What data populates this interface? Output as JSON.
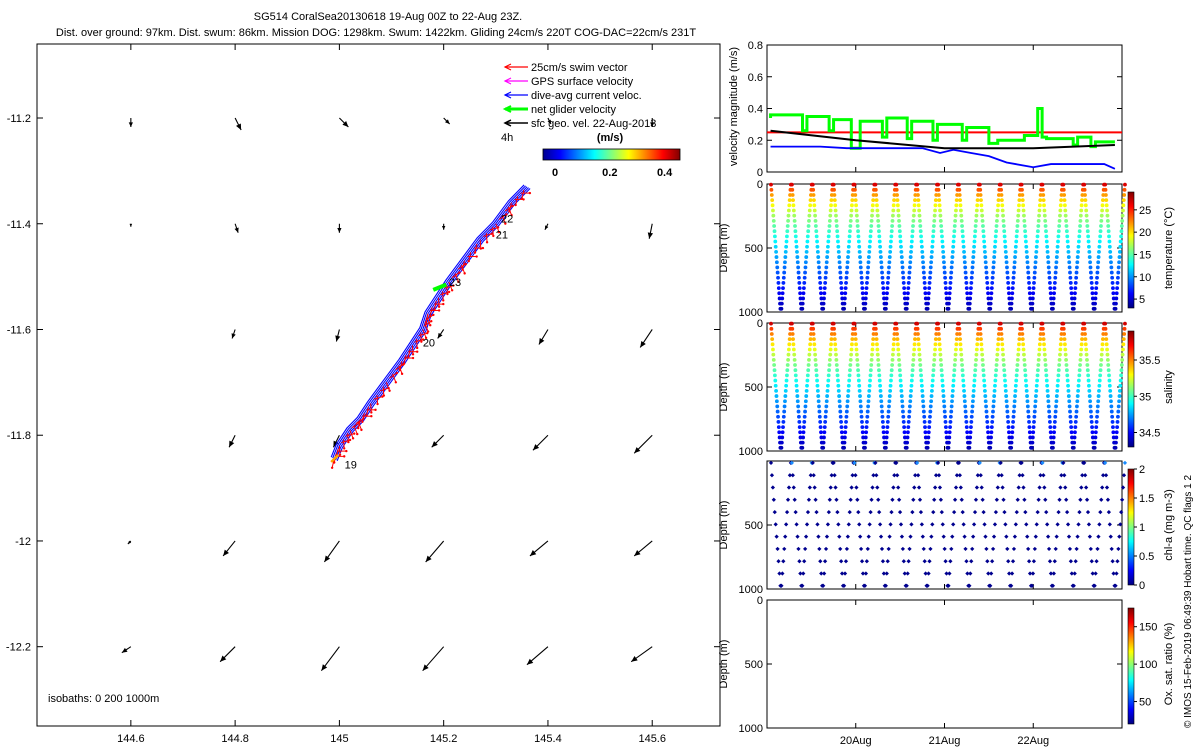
{
  "header": {
    "line1": "SG514 CoralSea20130618 19-Aug 00Z to 22-Aug 23Z.",
    "line2": "Dist. over ground: 97km. Dist. swum: 86km. Mission DOG: 1298km. Swum: 1422km. Gliding 24cm/s 220T COG-DAC=22cm/s 231T"
  },
  "footer_note": "© IMOS 15-Feb-2019 06:49:39 Hobart time. QC flags 1  2",
  "chart_data": [
    {
      "type": "map",
      "xlim": [
        144.42,
        145.73
      ],
      "ylim": [
        -12.35,
        -11.06
      ],
      "xticks": [
        144.6,
        144.8,
        145,
        145.2,
        145.4,
        145.6
      ],
      "xtick_labels": [
        "144.6",
        "144.8",
        "145",
        "145.2",
        "145.4",
        "145.6"
      ],
      "yticks": [
        -11.2,
        -11.4,
        -11.6,
        -11.8,
        -12,
        -12.2
      ],
      "ytick_labels": [
        "-11.2",
        "-11.4",
        "-11.6",
        "-11.8",
        "-12",
        "-12.2"
      ],
      "legend": [
        {
          "label": "25cm/s swim vector",
          "color": "#ff0000"
        },
        {
          "label": "GPS surface velocity",
          "color": "#ff00ff"
        },
        {
          "label": "dive-avg current veloc.",
          "color": "#0000ff"
        },
        {
          "label": "net glider velocity",
          "color": "#00ff00"
        },
        {
          "label": "sfc geo. vel. 22-Aug-2013",
          "color": "#000000"
        }
      ],
      "scale_label": "4h",
      "colorbar": {
        "title": "(m/s)",
        "range": [
          0,
          0.5
        ],
        "ticks": [
          0,
          0.2,
          0.4
        ],
        "tick_labels": [
          "0",
          "0.2",
          "0.4"
        ]
      },
      "isobath_label": "isobaths: 0   200  1000m",
      "track": [
        [
          144.99,
          -11.845
        ],
        [
          145.0,
          -11.82
        ],
        [
          145.02,
          -11.79
        ],
        [
          145.04,
          -11.77
        ],
        [
          145.06,
          -11.74
        ],
        [
          145.09,
          -11.7
        ],
        [
          145.12,
          -11.66
        ],
        [
          145.14,
          -11.63
        ],
        [
          145.16,
          -11.6
        ],
        [
          145.17,
          -11.57
        ],
        [
          145.19,
          -11.54
        ],
        [
          145.21,
          -11.51
        ],
        [
          145.24,
          -11.47
        ],
        [
          145.27,
          -11.43
        ],
        [
          145.3,
          -11.4
        ],
        [
          145.33,
          -11.36
        ],
        [
          145.36,
          -11.33
        ]
      ],
      "day_labels": [
        {
          "text": "19",
          "lon": 145.01,
          "lat": -11.855
        },
        {
          "text": "20",
          "lon": 145.16,
          "lat": -11.625
        },
        {
          "text": "21",
          "lon": 145.3,
          "lat": -11.42
        },
        {
          "text": "22",
          "lon": 145.31,
          "lat": -11.39
        },
        {
          "text": "23",
          "lon": 145.21,
          "lat": -11.51
        }
      ],
      "geo_vectors": {
        "lons": [
          144.6,
          144.8,
          145.0,
          145.2,
          145.4,
          145.6
        ],
        "lats": [
          -11.2,
          -11.4,
          -11.6,
          -11.8,
          -12.0,
          -12.2
        ],
        "u": [
          [
            0.0,
            0.02,
            0.03,
            0.02,
            0.01,
            0.0
          ],
          [
            0.0,
            0.01,
            0.0,
            0.0,
            -0.01,
            -0.01
          ],
          [
            0.0,
            -0.01,
            -0.01,
            -0.02,
            -0.03,
            -0.04
          ],
          [
            0.0,
            -0.02,
            -0.02,
            -0.04,
            -0.05,
            -0.06
          ],
          [
            -0.01,
            -0.04,
            -0.05,
            -0.06,
            -0.06,
            -0.06
          ],
          [
            -0.03,
            -0.05,
            -0.06,
            -0.07,
            -0.07,
            -0.07
          ]
        ],
        "v": [
          [
            -0.03,
            -0.04,
            -0.03,
            -0.02,
            -0.02,
            -0.03
          ],
          [
            -0.01,
            -0.03,
            -0.03,
            -0.02,
            -0.02,
            -0.05
          ],
          [
            0.0,
            -0.03,
            -0.04,
            -0.03,
            -0.05,
            -0.06
          ],
          [
            0.0,
            -0.04,
            -0.04,
            -0.04,
            -0.05,
            -0.06
          ],
          [
            -0.01,
            -0.05,
            -0.07,
            -0.07,
            -0.05,
            -0.05
          ],
          [
            -0.02,
            -0.05,
            -0.08,
            -0.08,
            -0.06,
            -0.05
          ]
        ]
      }
    },
    {
      "type": "line",
      "ylabel": "velocity magnitude (m/s)",
      "ylim": [
        0,
        0.8
      ],
      "yticks": [
        0,
        0.2,
        0.4,
        0.6,
        0.8
      ],
      "ytick_labels": [
        "0",
        "0.2",
        "0.4",
        "0.6",
        "0.8"
      ],
      "xlim": [
        0,
        4
      ],
      "series": [
        {
          "name": "swim",
          "color": "#ff0000",
          "x": [
            0,
            4
          ],
          "values": [
            0.25,
            0.25
          ]
        },
        {
          "name": "net glider velocity",
          "color": "#00ff00",
          "x": [
            0.04,
            0.04,
            0.4,
            0.4,
            0.45,
            0.45,
            0.7,
            0.7,
            0.75,
            0.75,
            0.95,
            0.95,
            1.05,
            1.05,
            1.3,
            1.3,
            1.35,
            1.35,
            1.58,
            1.58,
            1.63,
            1.63,
            1.87,
            1.87,
            1.92,
            1.92,
            2.2,
            2.2,
            2.25,
            2.25,
            2.5,
            2.5,
            2.6,
            2.6,
            2.9,
            2.9,
            3.05,
            3.05,
            3.1,
            3.1,
            3.15,
            3.15,
            3.45,
            3.45,
            3.5,
            3.5,
            3.65,
            3.65,
            3.7,
            3.7,
            3.92
          ],
          "values": [
            0.34,
            0.36,
            0.36,
            0.26,
            0.26,
            0.35,
            0.35,
            0.26,
            0.26,
            0.33,
            0.33,
            0.15,
            0.15,
            0.32,
            0.32,
            0.22,
            0.22,
            0.34,
            0.34,
            0.21,
            0.21,
            0.32,
            0.32,
            0.2,
            0.2,
            0.3,
            0.3,
            0.2,
            0.2,
            0.28,
            0.28,
            0.18,
            0.18,
            0.2,
            0.2,
            0.23,
            0.23,
            0.4,
            0.4,
            0.22,
            0.22,
            0.21,
            0.21,
            0.17,
            0.17,
            0.22,
            0.22,
            0.16,
            0.16,
            0.19,
            0.19
          ]
        },
        {
          "name": "dive-avg current",
          "color": "#0000ff",
          "x": [
            0.04,
            0.6,
            0.9,
            1.15,
            1.55,
            1.75,
            1.95,
            2.1,
            2.3,
            2.5,
            2.7,
            2.8,
            3.0,
            3.2,
            3.4,
            3.6,
            3.8,
            3.92
          ],
          "values": [
            0.16,
            0.16,
            0.15,
            0.15,
            0.15,
            0.15,
            0.12,
            0.14,
            0.12,
            0.1,
            0.06,
            0.05,
            0.03,
            0.05,
            0.05,
            0.05,
            0.05,
            0.02
          ]
        },
        {
          "name": "sfc geo. vel.",
          "color": "#000000",
          "x": [
            0.04,
            1.0,
            2.0,
            3.0,
            3.92
          ],
          "values": [
            0.26,
            0.2,
            0.15,
            0.15,
            0.17
          ]
        }
      ]
    },
    {
      "type": "scatter",
      "ylabel": "Depth (m)",
      "cblabel": "temperature (°C)",
      "ylim": [
        1000,
        0
      ],
      "yticks": [
        0,
        500,
        1000
      ],
      "ytick_labels": [
        "0",
        "500",
        "1000"
      ],
      "crange": [
        3,
        29
      ],
      "cticks": [
        5,
        10,
        15,
        20,
        25
      ],
      "ctick_labels": [
        "5",
        "10",
        "15",
        "20",
        "25"
      ],
      "profiles": [
        {
          "x": 0.05,
          "top": 0.6,
          "bottom": 0.55
        }
      ],
      "dives": 17,
      "xlim": [
        0,
        4
      ],
      "depth_range": [
        0,
        1000
      ],
      "profile": "temperature"
    },
    {
      "type": "scatter",
      "ylabel": "Depth (m)",
      "cblabel": "salinity",
      "ylim": [
        1000,
        0
      ],
      "yticks": [
        0,
        500,
        1000
      ],
      "ytick_labels": [
        "0",
        "500",
        "1000"
      ],
      "crange": [
        34.3,
        35.9
      ],
      "cticks": [
        34.5,
        35,
        35.5
      ],
      "ctick_labels": [
        "34.5",
        "35",
        "35.5"
      ],
      "dives": 17,
      "xlim": [
        0,
        4
      ],
      "depth_range": [
        0,
        1000
      ],
      "profile": "salinity"
    },
    {
      "type": "scatter",
      "ylabel": "Depth (m)",
      "cblabel": "chl-a (mg m-3)",
      "ylim": [
        1000,
        0
      ],
      "yticks": [
        500,
        1000
      ],
      "ytick_labels": [
        "500",
        "1000"
      ],
      "crange": [
        0,
        2
      ],
      "cticks": [
        0,
        0.5,
        1,
        1.5,
        2
      ],
      "ctick_labels": [
        "0",
        "0.5",
        "1",
        "1.5",
        "2"
      ],
      "dives": 17,
      "xlim": [
        0,
        4
      ],
      "profile": "chl"
    },
    {
      "type": "scatter",
      "ylabel": "Depth (m)",
      "cblabel": "Ox. sat. ratio (%)",
      "ylim": [
        1000,
        0
      ],
      "yticks": [
        0,
        500,
        1000
      ],
      "ytick_labels": [
        "0",
        "500",
        "1000"
      ],
      "crange": [
        20,
        175
      ],
      "cticks": [
        50,
        100,
        150
      ],
      "ctick_labels": [
        "50",
        "100",
        "150"
      ],
      "xticks": [
        1,
        2,
        3
      ],
      "xtick_labels": [
        "20Aug",
        "21Aug",
        "22Aug"
      ],
      "xlim": [
        0,
        4
      ],
      "profile": "empty"
    }
  ]
}
